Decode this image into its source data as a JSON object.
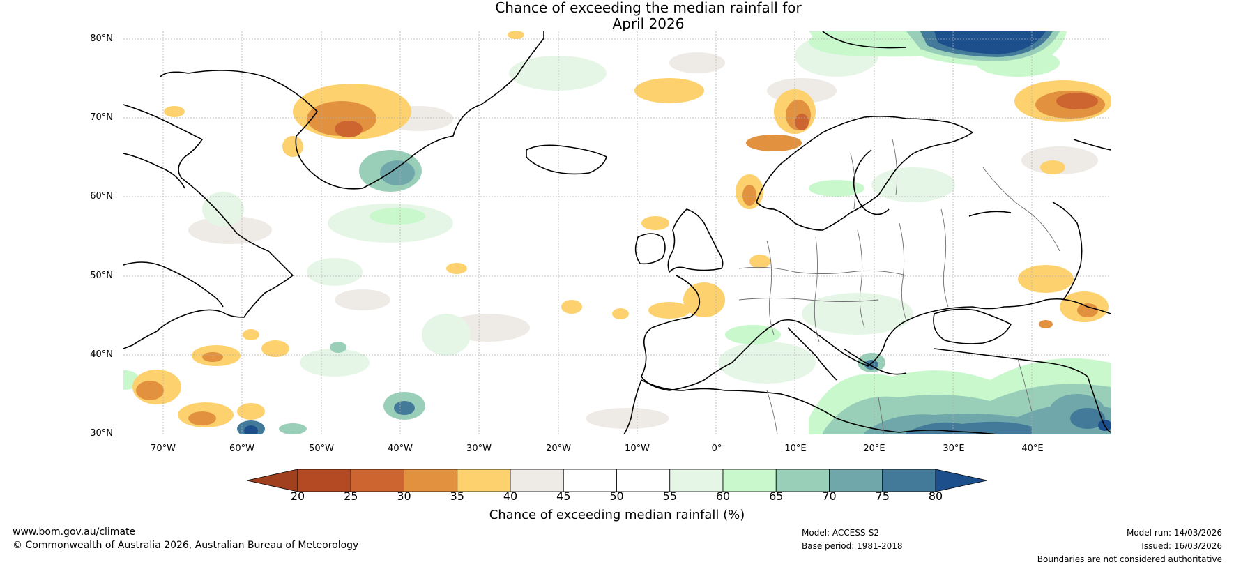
{
  "title": {
    "line1": "Chance of exceeding the median rainfall for",
    "line2": "April 2026"
  },
  "map": {
    "lat_labels": [
      "80°N",
      "70°N",
      "60°N",
      "50°N",
      "40°N",
      "30°N"
    ],
    "lon_labels": [
      "70°W",
      "60°W",
      "50°W",
      "40°W",
      "30°W",
      "20°W",
      "10°W",
      "0°",
      "10°E",
      "20°E",
      "30°E",
      "40°E"
    ],
    "lat_range": [
      30,
      81
    ],
    "lon_range": [
      -75,
      50
    ]
  },
  "colorbar": {
    "ticks": [
      "20",
      "25",
      "30",
      "35",
      "40",
      "45",
      "50",
      "55",
      "60",
      "65",
      "70",
      "75",
      "80"
    ],
    "colors": [
      "#a0401e",
      "#b34a24",
      "#cc6530",
      "#e2913f",
      "#fdd16e",
      "#eeeae6",
      "#ffffff",
      "#ffffff",
      "#e6f6e6",
      "#c8f8cc",
      "#99cfb8",
      "#6fa7aa",
      "#447a99",
      "#1d4f8c"
    ],
    "title": "Chance of exceeding median rainfall (%)"
  },
  "footer": {
    "website": "www.bom.gov.au/climate",
    "copyright": "© Commonwealth of Australia 2026, Australian Bureau of Meteorology",
    "model": "Model: ACCESS-S2",
    "base_period": "Base period: 1981-2018",
    "model_run": "Model run: 14/03/2026",
    "issued": "Issued: 16/03/2026",
    "disclaimer": "Boundaries are not considered authoritative"
  }
}
